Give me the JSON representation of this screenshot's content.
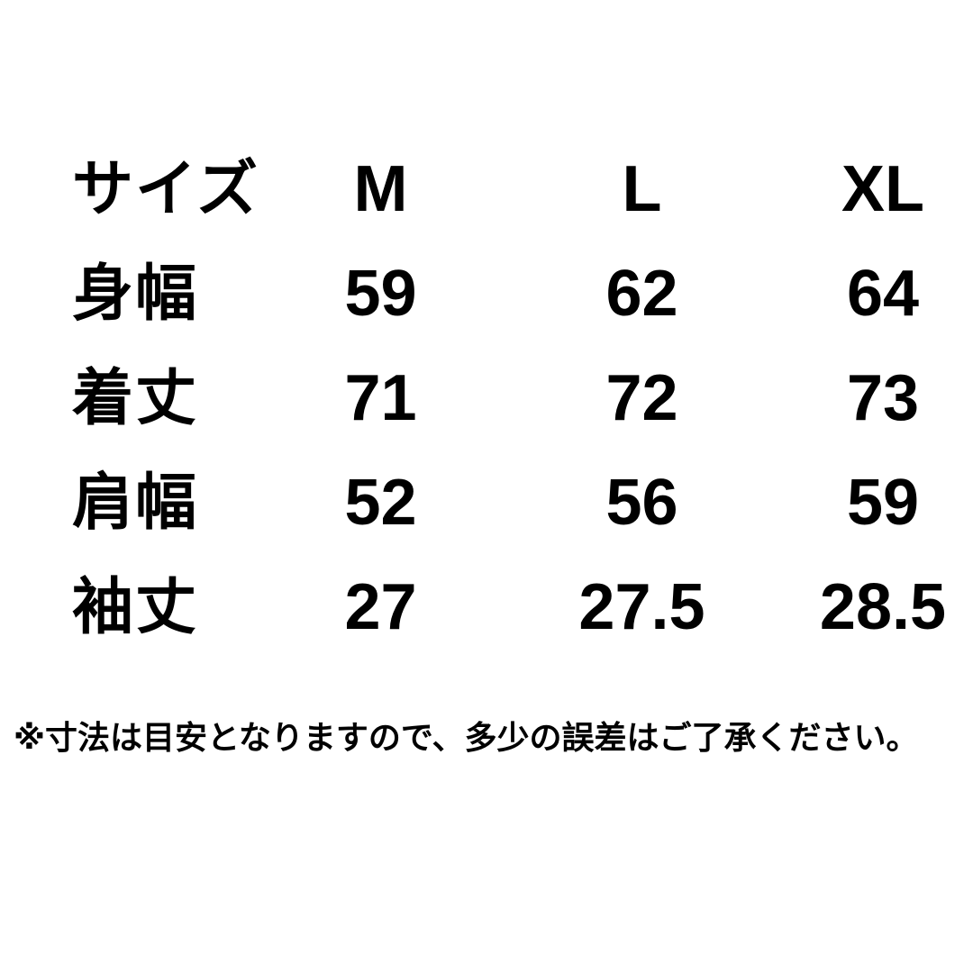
{
  "chart_data": {
    "type": "table",
    "title": "size-chart",
    "columns": [
      "サイズ",
      "M",
      "L",
      "XL"
    ],
    "rows": [
      {
        "label": "身幅",
        "values": [
          "59",
          "62",
          "64"
        ]
      },
      {
        "label": "着丈",
        "values": [
          "71",
          "72",
          "73"
        ]
      },
      {
        "label": "肩幅",
        "values": [
          "52",
          "56",
          "59"
        ]
      },
      {
        "label": "袖丈",
        "values": [
          "27",
          "27.5",
          "28.5"
        ]
      }
    ],
    "note": "※寸法は目安となりますので、多少の誤差はご了承ください。"
  },
  "table": {
    "header": {
      "label": "サイズ",
      "sizes": [
        "M",
        "L",
        "XL"
      ]
    },
    "rows": [
      {
        "label": "身幅",
        "values": [
          "59",
          "62",
          "64"
        ]
      },
      {
        "label": "着丈",
        "values": [
          "71",
          "72",
          "73"
        ]
      },
      {
        "label": "肩幅",
        "values": [
          "52",
          "56",
          "59"
        ]
      },
      {
        "label": "袖丈",
        "values": [
          "27",
          "27.5",
          "28.5"
        ]
      }
    ]
  },
  "note": "※寸法は目安となりますので、多少の誤差はご了承ください。",
  "colors": {
    "background": "#ffffff",
    "text": "#000000"
  }
}
